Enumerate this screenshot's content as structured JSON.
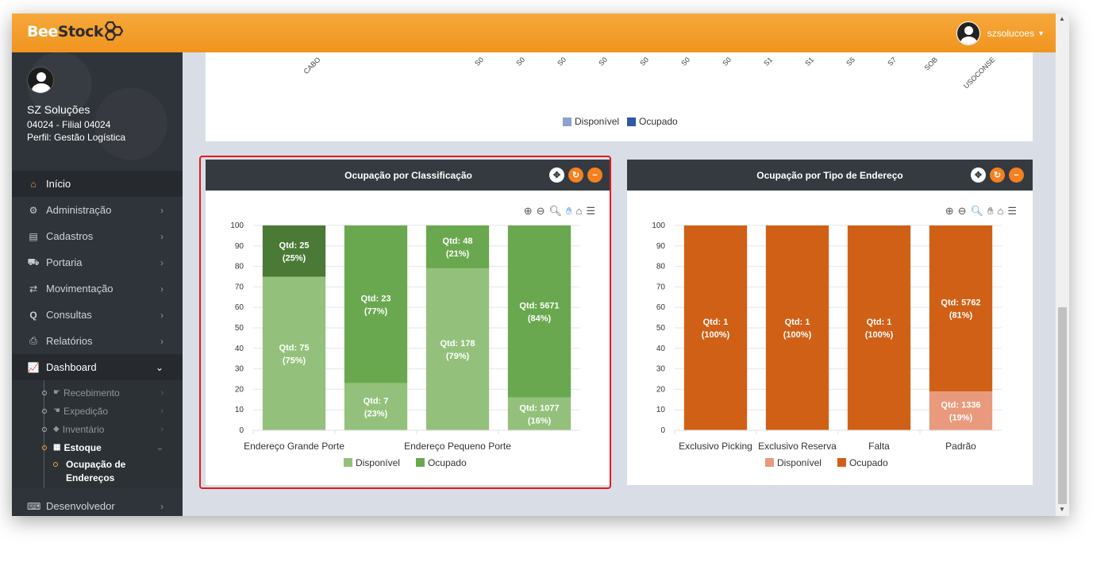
{
  "app": {
    "logo_bee": "Bee",
    "logo_stock": "Stock",
    "user_name": "szsolucoes"
  },
  "sidebar": {
    "company": "SZ Soluções",
    "branch": "04024 - Filial 04024",
    "perfil": "Perfil: Gestão Logística",
    "items": [
      {
        "label": "Início",
        "icon": "home-icon"
      },
      {
        "label": "Administração",
        "icon": "cogs-icon"
      },
      {
        "label": "Cadastros",
        "icon": "list-icon"
      },
      {
        "label": "Portaria",
        "icon": "truck-icon"
      },
      {
        "label": "Movimentação",
        "icon": "exchange-icon"
      },
      {
        "label": "Consultas",
        "icon": "search-icon"
      },
      {
        "label": "Relatórios",
        "icon": "print-icon"
      },
      {
        "label": "Dashboard",
        "icon": "chart-icon"
      }
    ],
    "dashboard_sub": [
      {
        "label": "Recebimento",
        "icon": "hand-right-icon"
      },
      {
        "label": "Expedição",
        "icon": "hand-left-icon"
      },
      {
        "label": "Inventário",
        "icon": "tags-icon"
      },
      {
        "label": "Estoque",
        "icon": "table-icon"
      }
    ],
    "estoque_sub": "Ocupação de Endereços",
    "developer": "Desenvolvedor"
  },
  "top_chart": {
    "x_labels": [
      "CABO",
      "S0",
      "S0",
      "S0",
      "S0",
      "S0",
      "S0",
      "S0",
      "S1",
      "S1",
      "S5",
      "S7",
      "SOB",
      "USOCONSE"
    ],
    "legend": [
      "Disponível",
      "Ocupado"
    ]
  },
  "colors": {
    "green_light": "#93c17b",
    "green_mid": "#6aa84f",
    "green_dark": "#4a7a36",
    "orange_dark": "#d06016",
    "orange_light": "#e99a7c",
    "top_blue_light": "#8da2cf",
    "top_blue_dark": "#2f58a6"
  },
  "chart_data": [
    {
      "type": "bar",
      "title": "Ocupação por Classificação",
      "ylim": [
        0,
        100
      ],
      "yticks": [
        0,
        10,
        20,
        30,
        40,
        50,
        60,
        70,
        80,
        90,
        100
      ],
      "categories": [
        "Endereço Grande Porte",
        "",
        "Endereço Pequeno Porte",
        ""
      ],
      "series": [
        {
          "name": "Disponível",
          "values": [
            75,
            23,
            79,
            16
          ],
          "labels": [
            "Qtd: 75\n(75%)",
            "Qtd: 7\n(23%)",
            "Qtd: 178\n(79%)",
            "Qtd: 1077\n(16%)"
          ]
        },
        {
          "name": "Ocupado",
          "values": [
            25,
            77,
            21,
            84
          ],
          "labels": [
            "Qtd: 25\n(25%)",
            "Qtd: 23\n(77%)",
            "Qtd: 48\n(21%)",
            "Qtd: 5671\n(84%)"
          ]
        }
      ],
      "legend": [
        "Disponível",
        "Ocupado"
      ]
    },
    {
      "type": "bar",
      "title": "Ocupação por Tipo de Endereço",
      "ylim": [
        0,
        100
      ],
      "yticks": [
        0,
        10,
        20,
        30,
        40,
        50,
        60,
        70,
        80,
        90,
        100
      ],
      "categories": [
        "Exclusivo Picking",
        "Exclusivo Reserva",
        "Falta",
        "Padrão"
      ],
      "series": [
        {
          "name": "Disponível",
          "values": [
            0,
            0,
            0,
            19
          ],
          "labels": [
            "",
            "",
            "",
            "Qtd: 1336\n(19%)"
          ]
        },
        {
          "name": "Ocupado",
          "values": [
            100,
            100,
            100,
            81
          ],
          "labels": [
            "Qtd: 1\n(100%)",
            "Qtd: 1\n(100%)",
            "Qtd: 1\n(100%)",
            "Qtd: 5762\n(81%)"
          ]
        }
      ],
      "legend": [
        "Disponível",
        "Ocupado"
      ]
    }
  ]
}
